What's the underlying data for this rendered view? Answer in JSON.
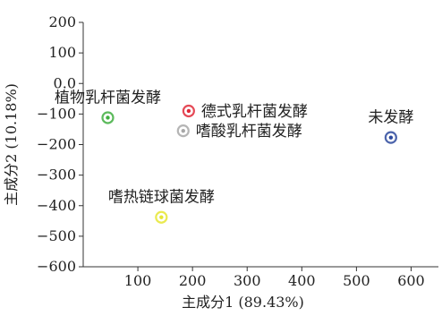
{
  "chart_data": {
    "type": "scatter",
    "xlabel": "主成分1 (89.43%)",
    "ylabel": "主成分2 (10.18%)",
    "xlim": [
      0,
      650
    ],
    "ylim": [
      -600,
      200
    ],
    "xticks": [
      "100",
      "200",
      "300",
      "400",
      "500",
      "600"
    ],
    "yticks": [
      "200",
      "100",
      "0.0",
      "−100",
      "−200",
      "−300",
      "−400",
      "−500",
      "−600"
    ],
    "xtick_values": [
      100,
      200,
      300,
      400,
      500,
      600
    ],
    "ytick_values": [
      200,
      100,
      0,
      -100,
      -200,
      -300,
      -400,
      -500,
      -600
    ],
    "grid": false,
    "legend": "none",
    "points": [
      {
        "label": "植物乳杆菌发酵",
        "x": 45,
        "y": -112,
        "color": "#3fae3f",
        "label_side": "above"
      },
      {
        "label": "德式乳杆菌发酵",
        "x": 193,
        "y": -90,
        "color": "#e02a3a",
        "label_side": "right"
      },
      {
        "label": "嗜酸乳杆菌发酵",
        "x": 183,
        "y": -155,
        "color": "#a8a8a8",
        "label_side": "right"
      },
      {
        "label": "嗜热链球菌发酵",
        "x": 143,
        "y": -438,
        "color": "#e6e633",
        "label_side": "above"
      },
      {
        "label": "未发酵",
        "x": 563,
        "y": -177,
        "color": "#2e4a9e",
        "label_side": "above"
      }
    ]
  }
}
